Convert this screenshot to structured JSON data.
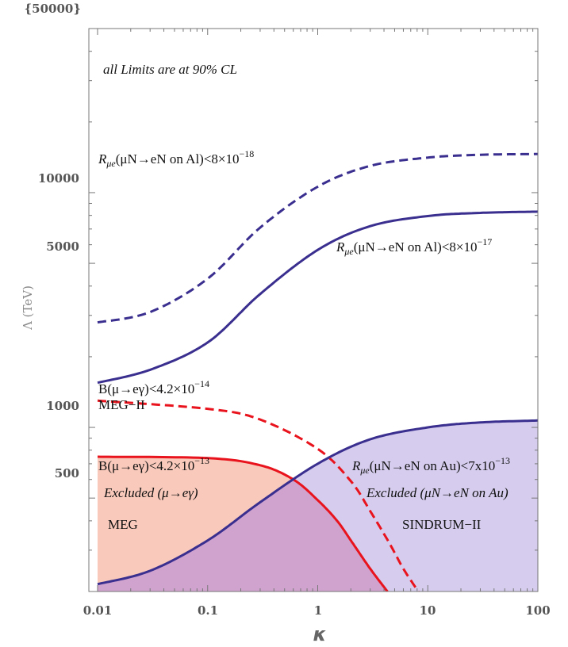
{
  "chart_data": {
    "type": "area",
    "xscale": "log",
    "yscale": "log",
    "xlim": [
      0.01,
      100
    ],
    "ylim": [
      200,
      50000
    ],
    "xlabel": "κ",
    "ylabel": "Λ (TeV)",
    "x_ticks": [
      "0.01",
      "0.1",
      "1",
      "10",
      "100"
    ],
    "y_ticks": [
      "500",
      "1000",
      "5000",
      "10000",
      "{50000}"
    ],
    "y_tick_values": [
      500,
      1000,
      5000,
      10000,
      50000
    ],
    "series": [
      {
        "style": "dashed",
        "color": "#3a2f8f",
        "x": [
          0.01,
          0.03,
          0.1,
          0.3,
          1,
          3,
          10,
          30,
          100
        ],
        "y": [
          2800,
          3100,
          4300,
          7100,
          10600,
          13000,
          14100,
          14500,
          14600
        ]
      },
      {
        "style": "solid",
        "color": "#3a2f8f",
        "x": [
          0.01,
          0.03,
          0.1,
          0.3,
          1,
          3,
          10,
          30,
          100
        ],
        "y": [
          1550,
          1760,
          2300,
          3700,
          5700,
          7200,
          7950,
          8200,
          8300
        ]
      },
      {
        "style": "dashed",
        "color": "#e8131c",
        "x": [
          0.01,
          0.1,
          0.3,
          1,
          2,
          3,
          4.5,
          6,
          8.2
        ],
        "y": [
          1300,
          1200,
          1080,
          810,
          590,
          440,
          320,
          250,
          200
        ]
      },
      {
        "style": "solid",
        "color": "#e8131c",
        "fill": "#f9cabb",
        "x": [
          0.01,
          0.1,
          0.3,
          0.6,
          1,
          1.5,
          2,
          3,
          4.3
        ],
        "y": [
          750,
          740,
          690,
          600,
          490,
          400,
          330,
          250,
          200
        ]
      },
      {
        "style": "solid",
        "color": "#3a2f8f",
        "fill": "#d6cdee",
        "x": [
          0.01,
          0.03,
          0.1,
          0.3,
          1,
          3,
          10,
          30,
          100
        ],
        "y": [
          215,
          245,
          330,
          480,
          700,
          890,
          1000,
          1050,
          1070
        ]
      }
    ],
    "overlap_fill": "#d0a3cf",
    "annotations": {
      "cl_note": "all Limits are at 90% CL",
      "al18_pre": "R",
      "al18_sub": "μe",
      "al18_main": "(μN→eN on Al)<8×10",
      "al18_exp": "−18",
      "al17_pre": "R",
      "al17_sub": "μe",
      "al17_main": "(μN→eN on Al)<8×10",
      "al17_exp": "−17",
      "megii_main": "B(μ→eγ)<4.2×10",
      "megii_exp": "−14",
      "megii_name": "MEG−II",
      "meg_main": "B(μ→eγ)<4.2×10",
      "meg_exp": "−13",
      "meg_excl": "Excluded (μ→eγ)",
      "meg_name": "MEG",
      "au_pre": "R",
      "au_sub": "μe",
      "au_main": "(μN→eN on Au)<7x10",
      "au_exp": "−13",
      "au_excl": "Excluded (μN→eN on Au)",
      "au_name": "SINDRUM−II"
    }
  }
}
